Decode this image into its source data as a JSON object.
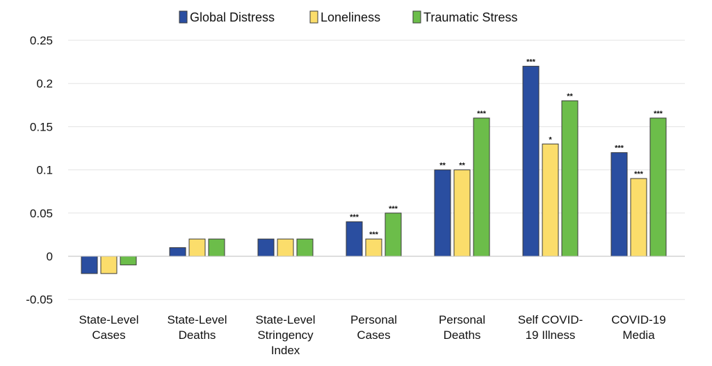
{
  "chart_data": {
    "type": "bar",
    "title": "",
    "xlabel": "",
    "ylabel": "",
    "ylim": [
      -0.05,
      0.25
    ],
    "yticks": [
      "0.25",
      "0.2",
      "0.15",
      "0.1",
      "0.05",
      "0",
      "-0.05"
    ],
    "ytick_values": [
      0.25,
      0.2,
      0.15,
      0.1,
      0.05,
      0,
      -0.05
    ],
    "grid": true,
    "legend_position": "top-center",
    "categories": [
      [
        "State-Level",
        "Cases"
      ],
      [
        "State-Level",
        "Deaths"
      ],
      [
        "State-Level",
        "Stringency",
        "Index"
      ],
      [
        "Personal",
        "Cases"
      ],
      [
        "Personal",
        "Deaths"
      ],
      [
        "Self COVID-",
        "19 Illness"
      ],
      [
        "COVID-19",
        "Media"
      ]
    ],
    "series": [
      {
        "name": "Global Distress",
        "color": "#2a4ea0",
        "values": [
          -0.02,
          0.01,
          0.02,
          0.04,
          0.1,
          0.22,
          0.12
        ],
        "significance": [
          "",
          "",
          "",
          "***",
          "**",
          "***",
          "***"
        ]
      },
      {
        "name": "Loneliness",
        "color": "#fbdd6b",
        "values": [
          -0.02,
          0.02,
          0.02,
          0.02,
          0.1,
          0.13,
          0.09
        ],
        "significance": [
          "",
          "",
          "",
          "***",
          "**",
          "*",
          "***"
        ]
      },
      {
        "name": "Traumatic Stress",
        "color": "#6cbd4a",
        "values": [
          -0.01,
          0.02,
          0.02,
          0.05,
          0.16,
          0.18,
          0.16
        ],
        "significance": [
          "",
          "",
          "",
          "***",
          "***",
          "**",
          "***"
        ]
      }
    ]
  }
}
